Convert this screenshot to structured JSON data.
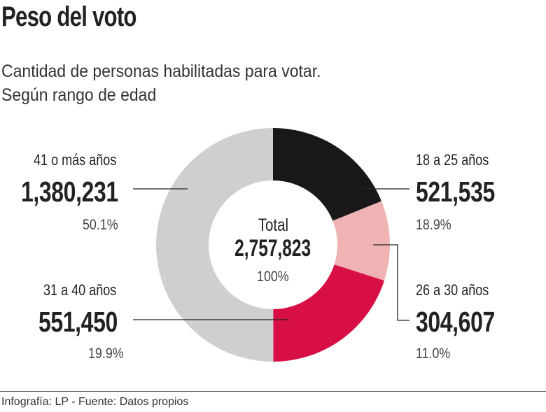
{
  "title": "Peso del voto",
  "subtitle_line1": "Cantidad de personas habilitadas para votar.",
  "subtitle_line2": "Según rango de edad",
  "footer": "Infografía: LP - Fuente: Datos propios",
  "chart_data": {
    "type": "pie",
    "variant": "donut",
    "center": {
      "label": "Total",
      "value": "2,757,823",
      "percent": "100%"
    },
    "slices": [
      {
        "label": "18 a 25 años",
        "value": 521535,
        "value_text": "521,535",
        "percent": 18.9,
        "percent_text": "18.9%",
        "color": "#1a1718"
      },
      {
        "label": "26 a 30 años",
        "value": 304607,
        "value_text": "304,607",
        "percent": 11.0,
        "percent_text": "11.0%",
        "color": "#efb3b3"
      },
      {
        "label": "31 a 40 años",
        "value": 551450,
        "value_text": "551,450",
        "percent": 19.9,
        "percent_text": "19.9%",
        "color": "#d70f45"
      },
      {
        "label": "41 o más años",
        "value": 1380231,
        "value_text": "1,380,231",
        "percent": 50.1,
        "percent_text": "50.1%",
        "color": "#cfcfd1"
      }
    ]
  }
}
